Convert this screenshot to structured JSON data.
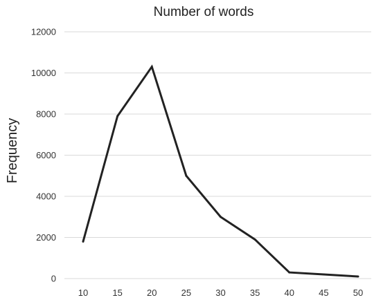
{
  "chart_data": {
    "type": "line",
    "title": "Number of words",
    "xlabel": "",
    "ylabel": "Frequency",
    "x": [
      10,
      15,
      20,
      25,
      30,
      35,
      40,
      45,
      50
    ],
    "series": [
      {
        "values": [
          1800,
          7900,
          10300,
          5000,
          3000,
          1900,
          300,
          200,
          100
        ],
        "color": "#222222"
      }
    ],
    "ylim": [
      0,
      12000
    ],
    "yticks": [
      0,
      2000,
      4000,
      6000,
      8000,
      10000,
      12000
    ],
    "grid": true,
    "legend": "none"
  }
}
